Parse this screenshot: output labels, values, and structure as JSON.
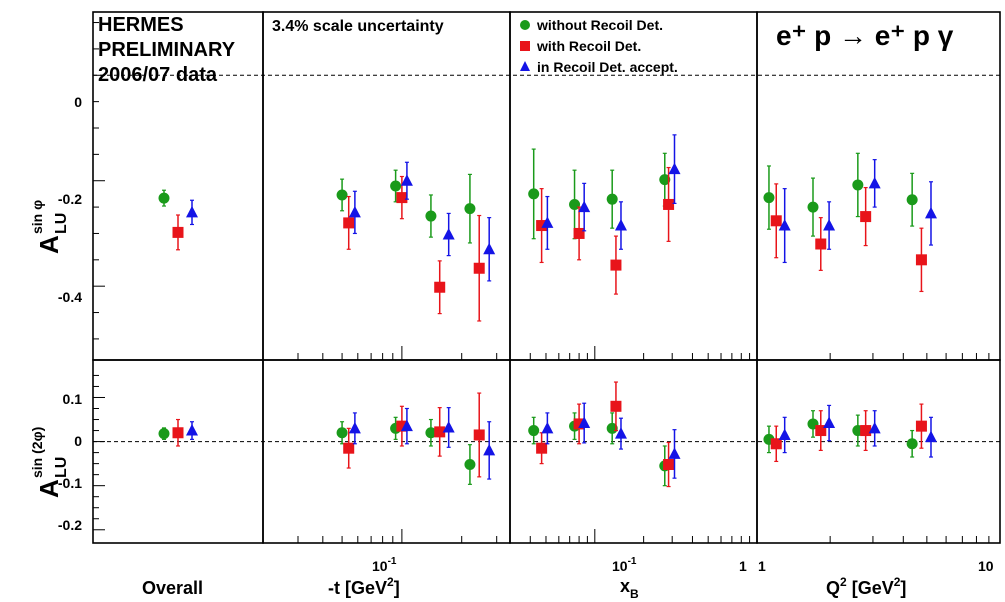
{
  "header": {
    "hermes_lines": [
      "HERMES",
      "PRELIMINARY",
      "2006/07 data"
    ],
    "scale_uncertainty": "3.4% scale uncertainty",
    "reaction": "e⁺ p → e⁺ p γ"
  },
  "legend": [
    {
      "label": "without Recoil Det.",
      "color": "#1a9a1a",
      "marker": "circle"
    },
    {
      "label": "with Recoil Det.",
      "color": "#e8141a",
      "marker": "square"
    },
    {
      "label": "in Recoil Det. accept.",
      "color": "#1414e6",
      "marker": "triangle"
    }
  ],
  "row_labels": {
    "top": {
      "main": "A",
      "sup": "sin φ",
      "sub": "LU"
    },
    "bottom": {
      "main": "A",
      "sup": "sin (2φ)",
      "sub": "LU"
    }
  },
  "column_labels": {
    "overall": "Overall",
    "t": {
      "text": "-t [GeV",
      "sup": "2",
      "tail": "]"
    },
    "xb": {
      "text": "x",
      "sub": "B"
    },
    "q2": {
      "text": "Q",
      "sup": "2",
      "mid": " [GeV",
      "sup2": "2",
      "tail": "]"
    }
  },
  "axis_ticks": {
    "top_y": [
      "0",
      "-0.2",
      "-0.4"
    ],
    "bottom_y": [
      "0.1",
      "0",
      "-0.1",
      "-0.2"
    ],
    "t_x": "10",
    "t_x_sup": "-1",
    "xb_x": "10",
    "xb_x_sup": "-1",
    "xb_x_one": "1",
    "q2_x_one": "1",
    "q2_x_ten": "10"
  },
  "chart_data": {
    "type": "scatter",
    "y_ranges": {
      "sin_phi": [
        -0.54,
        0.12
      ],
      "sin_2phi": [
        -0.23,
        0.185
      ]
    },
    "x_scales": {
      "t": {
        "scale": "log",
        "range": [
          0.02,
          0.35
        ]
      },
      "xB": {
        "scale": "log",
        "range": [
          0.03,
          1.0
        ]
      },
      "Q2": {
        "scale": "log",
        "range": [
          1.0,
          10.0
        ]
      }
    },
    "panels": [
      {
        "bin": "overall",
        "x_scale": null,
        "series": [
          {
            "name": "without Recoil Det.",
            "points": [
              {
                "x": 0,
                "sin_phi": -0.233,
                "err1": 0.015,
                "sin_2phi": 0.018,
                "err2": 0.013
              }
            ]
          },
          {
            "name": "with Recoil Det.",
            "points": [
              {
                "x": 0,
                "sin_phi": -0.298,
                "err1": 0.033,
                "sin_2phi": 0.02,
                "err2": 0.03
              }
            ]
          },
          {
            "name": "in Recoil Det. accept.",
            "points": [
              {
                "x": 0,
                "sin_phi": -0.26,
                "err1": 0.023,
                "sin_2phi": 0.025,
                "err2": 0.02
              }
            ]
          }
        ]
      },
      {
        "bin": "t",
        "x_scale": "t",
        "series": [
          {
            "name": "without Recoil Det.",
            "points": [
              {
                "x": 0.05,
                "sin_phi": -0.227,
                "err1": 0.03,
                "sin_2phi": 0.02,
                "err2": 0.025
              },
              {
                "x": 0.093,
                "sin_phi": -0.21,
                "err1": 0.03,
                "sin_2phi": 0.03,
                "err2": 0.025
              },
              {
                "x": 0.14,
                "sin_phi": -0.267,
                "err1": 0.04,
                "sin_2phi": 0.02,
                "err2": 0.03
              },
              {
                "x": 0.22,
                "sin_phi": -0.253,
                "err1": 0.065,
                "sin_2phi": -0.052,
                "err2": 0.045
              }
            ]
          },
          {
            "name": "with Recoil Det.",
            "points": [
              {
                "x": 0.054,
                "sin_phi": -0.28,
                "err1": 0.05,
                "sin_2phi": -0.015,
                "err2": 0.045
              },
              {
                "x": 0.1,
                "sin_phi": -0.232,
                "err1": 0.04,
                "sin_2phi": 0.035,
                "err2": 0.045
              },
              {
                "x": 0.155,
                "sin_phi": -0.402,
                "err1": 0.05,
                "sin_2phi": 0.022,
                "err2": 0.055
              },
              {
                "x": 0.245,
                "sin_phi": -0.366,
                "err1": 0.1,
                "sin_2phi": 0.015,
                "err2": 0.095
              }
            ]
          },
          {
            "name": "in Recoil Det. accept.",
            "points": [
              {
                "x": 0.058,
                "sin_phi": -0.26,
                "err1": 0.04,
                "sin_2phi": 0.03,
                "err2": 0.035
              },
              {
                "x": 0.106,
                "sin_phi": -0.2,
                "err1": 0.035,
                "sin_2phi": 0.035,
                "err2": 0.04
              },
              {
                "x": 0.172,
                "sin_phi": -0.302,
                "err1": 0.04,
                "sin_2phi": 0.032,
                "err2": 0.045
              },
              {
                "x": 0.275,
                "sin_phi": -0.33,
                "err1": 0.06,
                "sin_2phi": -0.02,
                "err2": 0.065
              }
            ]
          }
        ]
      },
      {
        "bin": "xB",
        "x_scale": "xB",
        "series": [
          {
            "name": "without Recoil Det.",
            "points": [
              {
                "x": 0.042,
                "sin_phi": -0.225,
                "err1": 0.085,
                "sin_2phi": 0.025,
                "err2": 0.03
              },
              {
                "x": 0.075,
                "sin_phi": -0.245,
                "err1": 0.065,
                "sin_2phi": 0.035,
                "err2": 0.03
              },
              {
                "x": 0.128,
                "sin_phi": -0.235,
                "err1": 0.055,
                "sin_2phi": 0.03,
                "err2": 0.035
              },
              {
                "x": 0.27,
                "sin_phi": -0.198,
                "err1": 0.05,
                "sin_2phi": -0.055,
                "err2": 0.045
              }
            ]
          },
          {
            "name": "with Recoil Det.",
            "points": [
              {
                "x": 0.047,
                "sin_phi": -0.285,
                "err1": 0.07,
                "sin_2phi": -0.015,
                "err2": 0.035
              },
              {
                "x": 0.08,
                "sin_phi": -0.3,
                "err1": 0.05,
                "sin_2phi": 0.04,
                "err2": 0.045
              },
              {
                "x": 0.135,
                "sin_phi": -0.36,
                "err1": 0.055,
                "sin_2phi": 0.08,
                "err2": 0.055
              },
              {
                "x": 0.285,
                "sin_phi": -0.245,
                "err1": 0.07,
                "sin_2phi": -0.052,
                "err2": 0.05
              }
            ]
          },
          {
            "name": "in Recoil Det. accept.",
            "points": [
              {
                "x": 0.051,
                "sin_phi": -0.28,
                "err1": 0.05,
                "sin_2phi": 0.03,
                "err2": 0.035
              },
              {
                "x": 0.086,
                "sin_phi": -0.25,
                "err1": 0.045,
                "sin_2phi": 0.042,
                "err2": 0.045
              },
              {
                "x": 0.145,
                "sin_phi": -0.285,
                "err1": 0.045,
                "sin_2phi": 0.018,
                "err2": 0.035
              },
              {
                "x": 0.31,
                "sin_phi": -0.178,
                "err1": 0.065,
                "sin_2phi": -0.028,
                "err2": 0.055
              }
            ]
          }
        ]
      },
      {
        "bin": "Q2",
        "x_scale": "Q2",
        "series": [
          {
            "name": "without Recoil Det.",
            "points": [
              {
                "x": 1.12,
                "sin_phi": -0.232,
                "err1": 0.06,
                "sin_2phi": 0.005,
                "err2": 0.03
              },
              {
                "x": 1.7,
                "sin_phi": -0.25,
                "err1": 0.055,
                "sin_2phi": 0.04,
                "err2": 0.03
              },
              {
                "x": 2.6,
                "sin_phi": -0.208,
                "err1": 0.06,
                "sin_2phi": 0.025,
                "err2": 0.035
              },
              {
                "x": 4.35,
                "sin_phi": -0.236,
                "err1": 0.05,
                "sin_2phi": -0.005,
                "err2": 0.03
              }
            ]
          },
          {
            "name": "with Recoil Det.",
            "points": [
              {
                "x": 1.2,
                "sin_phi": -0.276,
                "err1": 0.07,
                "sin_2phi": -0.005,
                "err2": 0.04
              },
              {
                "x": 1.83,
                "sin_phi": -0.32,
                "err1": 0.05,
                "sin_2phi": 0.025,
                "err2": 0.045
              },
              {
                "x": 2.8,
                "sin_phi": -0.268,
                "err1": 0.055,
                "sin_2phi": 0.025,
                "err2": 0.045
              },
              {
                "x": 4.75,
                "sin_phi": -0.35,
                "err1": 0.06,
                "sin_2phi": 0.035,
                "err2": 0.05
              }
            ]
          },
          {
            "name": "in Recoil Det. accept.",
            "points": [
              {
                "x": 1.3,
                "sin_phi": -0.285,
                "err1": 0.07,
                "sin_2phi": 0.015,
                "err2": 0.04
              },
              {
                "x": 1.98,
                "sin_phi": -0.285,
                "err1": 0.045,
                "sin_2phi": 0.042,
                "err2": 0.04
              },
              {
                "x": 3.05,
                "sin_phi": -0.205,
                "err1": 0.045,
                "sin_2phi": 0.03,
                "err2": 0.04
              },
              {
                "x": 5.2,
                "sin_phi": -0.262,
                "err1": 0.06,
                "sin_2phi": 0.01,
                "err2": 0.045
              }
            ]
          }
        ]
      }
    ]
  }
}
